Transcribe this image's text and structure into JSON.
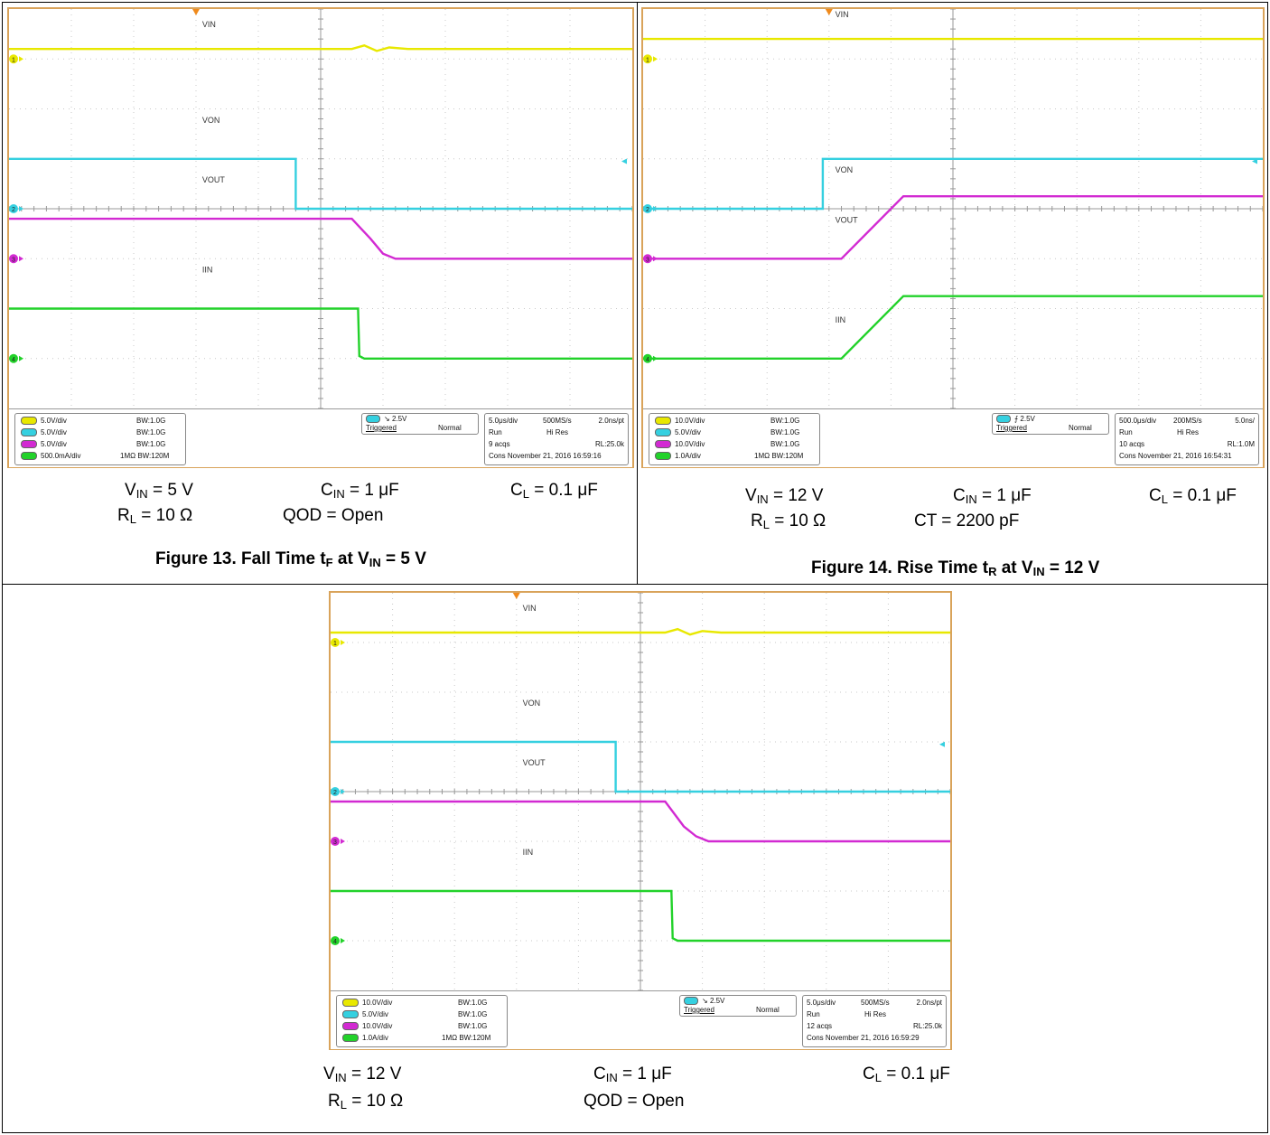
{
  "figures": [
    {
      "id": "fig13",
      "channels": [
        {
          "scale": "5.0V/div",
          "bw": "BW:1.0G",
          "color": "#e8e800"
        },
        {
          "scale": "5.0V/div",
          "bw": "BW:1.0G",
          "color": "#35d0e0"
        },
        {
          "scale": "5.0V/div",
          "bw": "BW:1.0G",
          "color": "#d22ad2"
        },
        {
          "scale": "500.0mA/div",
          "bw": "1MΩ BW:120M",
          "color": "#22d22a"
        }
      ],
      "trigger": {
        "level": "2.5V",
        "edge": "falling",
        "state": "Triggered",
        "mode": "Normal"
      },
      "acq": {
        "timebase": "5.0μs/div",
        "rate": "500MS/s",
        "pt": "2.0ns/pt",
        "run": "Run",
        "res": "Hi Res",
        "acqs": "9 acqs",
        "rl": "RL:25.0k",
        "date": "Cons  November 21, 2016  16:59:16"
      },
      "trace_labels": {
        "vin": "VIN",
        "von": "VON",
        "vout": "VOUT",
        "iin": "IIN"
      },
      "conditions": {
        "vin": "5 V",
        "cin": "1 μF",
        "cl": "0.1 μF",
        "rl": "10 Ω",
        "extra": "QOD = Open"
      },
      "caption": {
        "prefix": "Figure 13. Fall Time t",
        "sub1": "F",
        "mid": " at V",
        "sub2": "IN",
        "suffix": " = 5 V"
      },
      "chart_data": {
        "type": "line",
        "x_unit": "div",
        "xlim": [
          0,
          10
        ],
        "ylim": [
          0,
          8
        ],
        "series": [
          {
            "name": "VIN",
            "color": "#e8e800",
            "x": [
              0,
              5.5,
              5.7,
              5.9,
              6.1,
              6.4,
              10
            ],
            "y": [
              7.2,
              7.2,
              7.27,
              7.16,
              7.23,
              7.2,
              7.2
            ]
          },
          {
            "name": "VON",
            "color": "#35d0e0",
            "x": [
              0,
              4.6,
              4.6,
              10
            ],
            "y": [
              5.0,
              5.0,
              4.0,
              4.0
            ]
          },
          {
            "name": "VOUT",
            "color": "#d22ad2",
            "x": [
              0,
              5.5,
              5.8,
              6.0,
              6.2,
              10
            ],
            "y": [
              3.8,
              3.8,
              3.4,
              3.1,
              3.0,
              3.0
            ]
          },
          {
            "name": "IIN",
            "color": "#22d22a",
            "x": [
              0,
              5.6,
              5.62,
              5.7,
              10
            ],
            "y": [
              2.0,
              2.0,
              1.05,
              1.0,
              1.0
            ]
          }
        ],
        "ground_markers": [
          {
            "ch": "1",
            "y": 7.0
          },
          {
            "ch": "2",
            "y": 4.0
          },
          {
            "ch": "3",
            "y": 3.0
          },
          {
            "ch": "4",
            "y": 1.0
          }
        ],
        "trigger_marker_y": 4.95
      }
    },
    {
      "id": "fig14",
      "channels": [
        {
          "scale": "10.0V/div",
          "bw": "BW:1.0G",
          "color": "#e8e800"
        },
        {
          "scale": "5.0V/div",
          "bw": "BW:1.0G",
          "color": "#35d0e0"
        },
        {
          "scale": "10.0V/div",
          "bw": "BW:1.0G",
          "color": "#d22ad2"
        },
        {
          "scale": "1.0A/div",
          "bw": "1MΩ BW:120M",
          "color": "#22d22a"
        }
      ],
      "trigger": {
        "level": "2.5V",
        "edge": "rising",
        "state": "Triggered",
        "mode": "Normal"
      },
      "acq": {
        "timebase": "500.0μs/div",
        "rate": "200MS/s",
        "pt": "5.0ns/",
        "run": "Run",
        "res": "Hi Res",
        "acqs": "10 acqs",
        "rl": "RL:1.0M",
        "date": "Cons  November 21, 2016  16:54:31"
      },
      "trace_labels": {
        "vin": "VIN",
        "von": "VON",
        "vout": "VOUT",
        "iin": "IIN"
      },
      "conditions": {
        "vin": "12 V",
        "cin": "1 μF",
        "cl": "0.1 μF",
        "rl": "10 Ω",
        "extra": "CT = 2200 pF"
      },
      "caption": {
        "prefix": "Figure 14. Rise Time t",
        "sub1": "R",
        "mid": " at V",
        "sub2": "IN",
        "suffix": " = 12 V"
      },
      "chart_data": {
        "type": "line",
        "x_unit": "div",
        "xlim": [
          0,
          10
        ],
        "ylim": [
          0,
          8
        ],
        "series": [
          {
            "name": "VIN",
            "color": "#e8e800",
            "x": [
              0,
              10
            ],
            "y": [
              7.4,
              7.4
            ]
          },
          {
            "name": "VON",
            "color": "#35d0e0",
            "x": [
              0,
              2.9,
              2.9,
              10
            ],
            "y": [
              4.0,
              4.0,
              5.0,
              5.0
            ]
          },
          {
            "name": "VOUT",
            "color": "#d22ad2",
            "x": [
              0,
              3.2,
              4.2,
              10
            ],
            "y": [
              3.0,
              3.0,
              4.25,
              4.25
            ]
          },
          {
            "name": "IIN",
            "color": "#22d22a",
            "x": [
              0,
              3.2,
              4.2,
              10
            ],
            "y": [
              1.0,
              1.0,
              2.25,
              2.25
            ]
          }
        ],
        "ground_markers": [
          {
            "ch": "1",
            "y": 7.0
          },
          {
            "ch": "2",
            "y": 4.0
          },
          {
            "ch": "3",
            "y": 3.0
          },
          {
            "ch": "4",
            "y": 1.0
          }
        ],
        "trigger_marker_y": 4.95
      }
    },
    {
      "id": "fig15",
      "channels": [
        {
          "scale": "10.0V/div",
          "bw": "BW:1.0G",
          "color": "#e8e800"
        },
        {
          "scale": "5.0V/div",
          "bw": "BW:1.0G",
          "color": "#35d0e0"
        },
        {
          "scale": "10.0V/div",
          "bw": "BW:1.0G",
          "color": "#d22ad2"
        },
        {
          "scale": "1.0A/div",
          "bw": "1MΩ BW:120M",
          "color": "#22d22a"
        }
      ],
      "trigger": {
        "level": "2.5V",
        "edge": "falling",
        "state": "Triggered",
        "mode": "Normal"
      },
      "acq": {
        "timebase": "5.0μs/div",
        "rate": "500MS/s",
        "pt": "2.0ns/pt",
        "run": "Run",
        "res": "Hi Res",
        "acqs": "12 acqs",
        "rl": "RL:25.0k",
        "date": "Cons  November 21, 2016  16:59:29"
      },
      "trace_labels": {
        "vin": "VIN",
        "von": "VON",
        "vout": "VOUT",
        "iin": "IIN"
      },
      "conditions": {
        "vin": "12 V",
        "cin": "1 μF",
        "cl": "0.1 μF",
        "rl": "10 Ω",
        "extra": "QOD = Open"
      },
      "chart_data": {
        "type": "line",
        "x_unit": "div",
        "xlim": [
          0,
          10
        ],
        "ylim": [
          0,
          8
        ],
        "series": [
          {
            "name": "VIN",
            "color": "#e8e800",
            "x": [
              0,
              5.4,
              5.6,
              5.8,
              6.0,
              6.3,
              10
            ],
            "y": [
              7.2,
              7.2,
              7.27,
              7.16,
              7.23,
              7.2,
              7.2
            ]
          },
          {
            "name": "VON",
            "color": "#35d0e0",
            "x": [
              0,
              4.6,
              4.6,
              10
            ],
            "y": [
              5.0,
              5.0,
              4.0,
              4.0
            ]
          },
          {
            "name": "VOUT",
            "color": "#d22ad2",
            "x": [
              0,
              5.4,
              5.7,
              5.9,
              6.1,
              10
            ],
            "y": [
              3.8,
              3.8,
              3.3,
              3.1,
              3.0,
              3.0
            ]
          },
          {
            "name": "IIN",
            "color": "#22d22a",
            "x": [
              0,
              5.5,
              5.52,
              5.6,
              10
            ],
            "y": [
              2.0,
              2.0,
              1.05,
              1.0,
              1.0
            ]
          }
        ],
        "ground_markers": [
          {
            "ch": "1",
            "y": 7.0
          },
          {
            "ch": "2",
            "y": 4.0
          },
          {
            "ch": "3",
            "y": 3.0
          },
          {
            "ch": "4",
            "y": 1.0
          }
        ],
        "trigger_marker_y": 4.95
      }
    }
  ]
}
